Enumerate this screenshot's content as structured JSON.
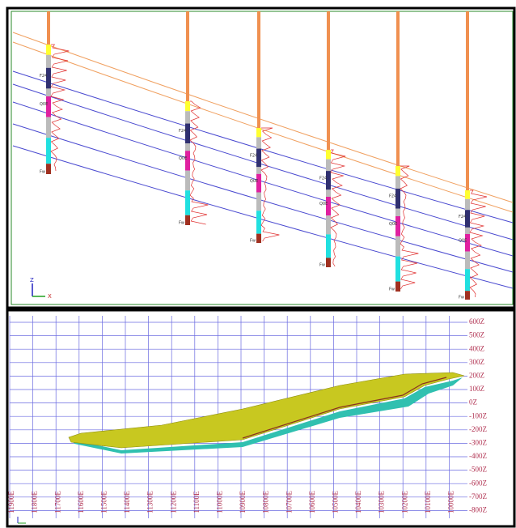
{
  "top_panel": {
    "axis_z": "Z",
    "axis_x": "X",
    "wells": [
      {
        "labels": [
          "F24",
          "Q0E",
          "Fw"
        ]
      },
      {
        "labels": [
          "F24",
          "Q0E",
          "Fw"
        ]
      },
      {
        "labels": [
          "F24",
          "Q0E",
          "Fw"
        ]
      },
      {
        "labels": [
          "F24",
          "Q0E",
          "Fw"
        ]
      },
      {
        "labels": [
          "F24",
          "Q0E",
          "Fw"
        ]
      },
      {
        "labels": [
          "F24",
          "Q0E",
          "Fw"
        ]
      }
    ]
  },
  "bottom_panel": {
    "z_labels": [
      "600Z",
      "500Z",
      "400Z",
      "300Z",
      "200Z",
      "100Z",
      "0Z",
      "-100Z",
      "-200Z",
      "-300Z",
      "-400Z",
      "-500Z",
      "-600Z",
      "-700Z",
      "-800Z"
    ],
    "e_labels": [
      "11900E",
      "11800E",
      "11700E",
      "11600E",
      "11500E",
      "11400E",
      "11300E",
      "11200E",
      "11100E",
      "11000E",
      "10900E",
      "10800E",
      "10700E",
      "10600E",
      "10500E",
      "10400E",
      "10300E",
      "10200E",
      "10100E",
      "10000E"
    ]
  }
}
